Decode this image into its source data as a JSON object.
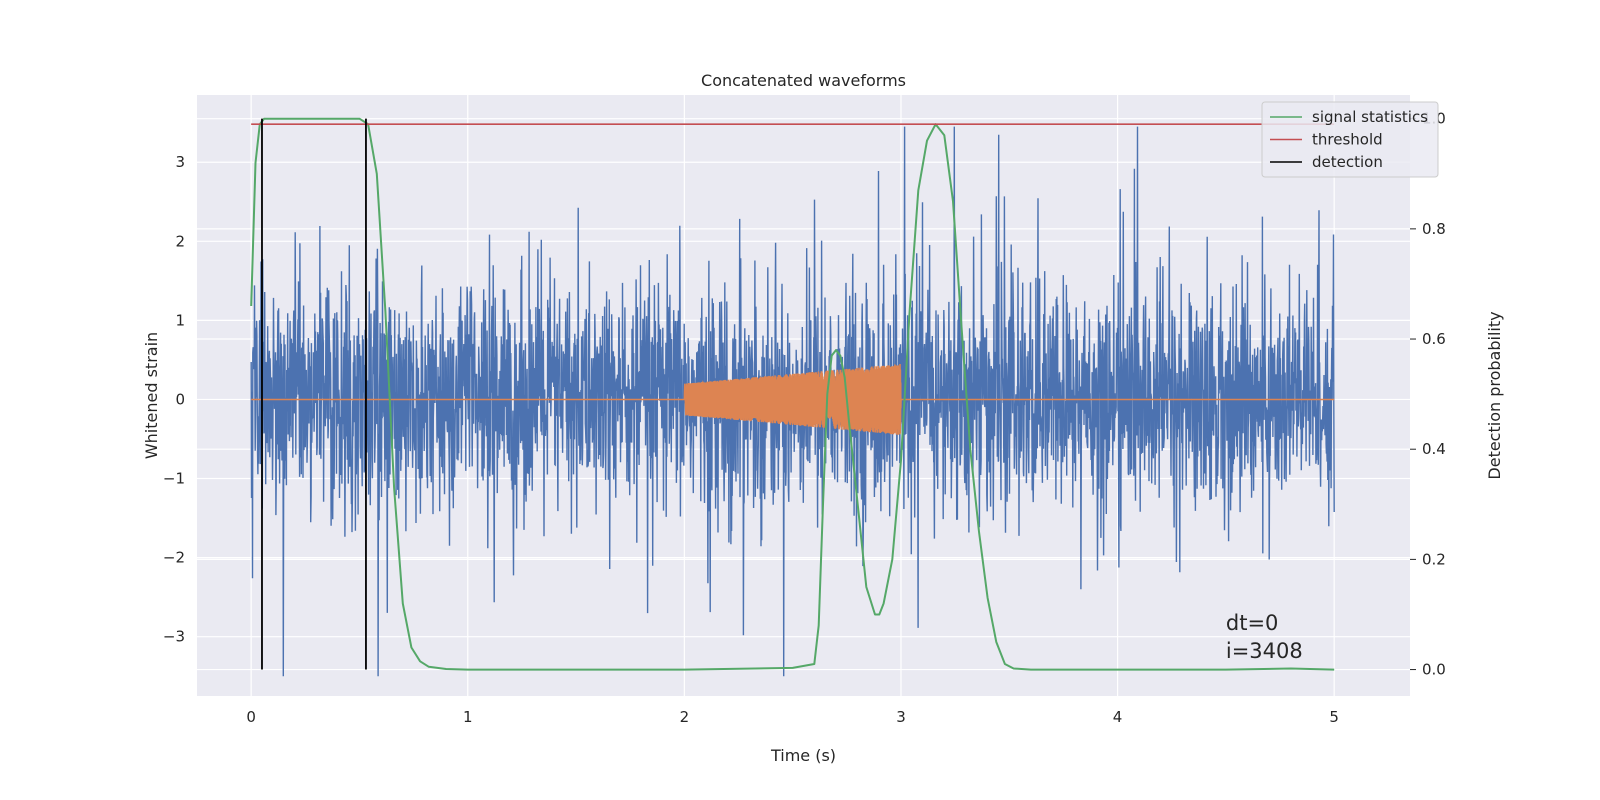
{
  "chart_data": {
    "type": "line",
    "title": "Concatenated waveforms",
    "xlabel": "Time (s)",
    "ylabel": "Whitened strain",
    "y2label": "Detection probability",
    "xlim": [
      -0.25,
      5.35
    ],
    "ylim": [
      -3.75,
      3.85
    ],
    "y2lim": [
      -0.048,
      1.043
    ],
    "xticks": [
      0,
      1,
      2,
      3,
      4,
      5
    ],
    "xtick_labels": [
      "0",
      "1",
      "2",
      "3",
      "4",
      "5"
    ],
    "yticks": [
      -3,
      -2,
      -1,
      0,
      1,
      2,
      3
    ],
    "ytick_labels": [
      "−3",
      "−2",
      "−1",
      "0",
      "1",
      "2",
      "3"
    ],
    "y2ticks": [
      0,
      0.2,
      0.4,
      0.6,
      0.8,
      1.0
    ],
    "y2tick_labels": [
      "0.0",
      "0.2",
      "0.4",
      "0.6",
      "0.8",
      "1.0"
    ],
    "grid": true,
    "legend_position": "top-right",
    "legend": [
      {
        "label": "signal statistics",
        "color": "#55a868"
      },
      {
        "label": "threshold",
        "color": "#c44e52"
      },
      {
        "label": "detection",
        "color": "#000000"
      }
    ],
    "annotations": [
      "dt=0",
      "i=3408"
    ],
    "series": [
      {
        "role": "noise",
        "color": "#4c72b0",
        "description_values": {
          "x_range": [
            0,
            5
          ],
          "typical_amplitude": 0.7,
          "max": 3.45,
          "min": -3.5
        }
      },
      {
        "role": "injected",
        "color": "#dd8452",
        "x_range": [
          2,
          3
        ],
        "start_amplitude": 0.2,
        "end_amplitude": 0.45
      },
      {
        "name": "signal statistics",
        "axis": "right",
        "color": "#55a868",
        "x": [
          0.0,
          0.02,
          0.04,
          0.06,
          0.08,
          0.1,
          0.3,
          0.5,
          0.54,
          0.58,
          0.62,
          0.66,
          0.7,
          0.74,
          0.78,
          0.82,
          0.9,
          1.0,
          1.5,
          2.0,
          2.5,
          2.6,
          2.62,
          2.64,
          2.66,
          2.68,
          2.7,
          2.72,
          2.74,
          2.76,
          2.8,
          2.84,
          2.88,
          2.9,
          2.92,
          2.96,
          3.0,
          3.04,
          3.08,
          3.12,
          3.16,
          3.2,
          3.24,
          3.28,
          3.32,
          3.36,
          3.4,
          3.44,
          3.48,
          3.52,
          3.6,
          4.0,
          4.5,
          4.8,
          5.0
        ],
        "y": [
          0.66,
          0.92,
          0.99,
          1.0,
          1.0,
          1.0,
          1.0,
          1.0,
          0.99,
          0.9,
          0.65,
          0.33,
          0.12,
          0.04,
          0.015,
          0.005,
          0.001,
          0.0,
          0.0,
          0.0,
          0.003,
          0.01,
          0.08,
          0.3,
          0.5,
          0.57,
          0.58,
          0.57,
          0.53,
          0.45,
          0.3,
          0.15,
          0.1,
          0.1,
          0.12,
          0.2,
          0.38,
          0.65,
          0.87,
          0.96,
          0.99,
          0.97,
          0.85,
          0.62,
          0.4,
          0.25,
          0.13,
          0.05,
          0.01,
          0.002,
          0.0,
          0.0,
          0.0,
          0.002,
          0.0
        ]
      },
      {
        "name": "threshold",
        "axis": "right",
        "color": "#c44e52",
        "x": [
          0,
          5
        ],
        "y": [
          0.99,
          0.99
        ]
      },
      {
        "name": "detection",
        "axis": "right",
        "color": "#000000",
        "x": [
          0.05,
          0.53
        ],
        "y_range": [
          0,
          1.0
        ]
      }
    ]
  }
}
